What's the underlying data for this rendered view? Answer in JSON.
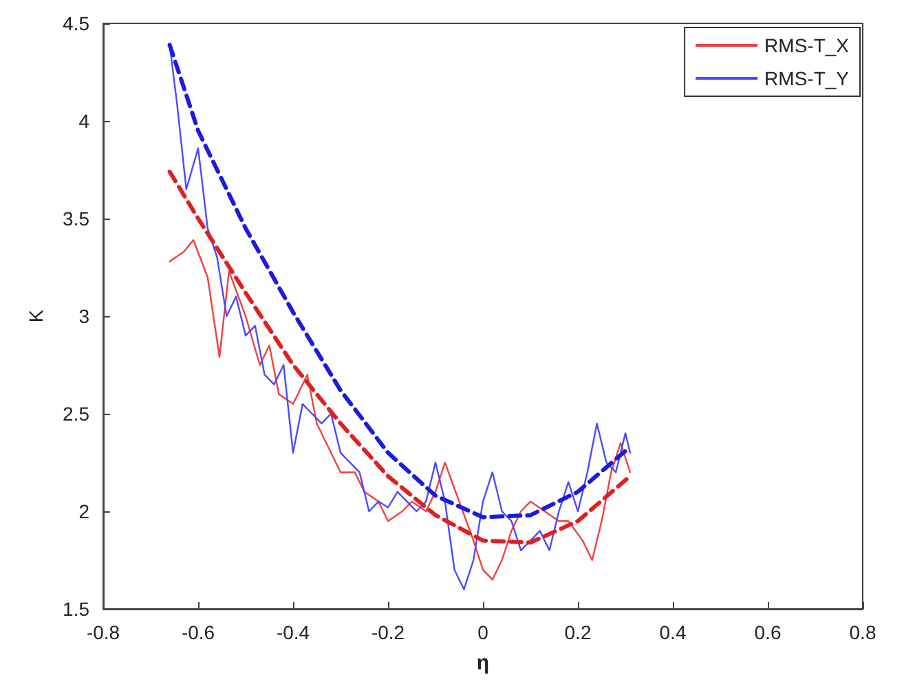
{
  "chart_data": {
    "type": "line",
    "xlabel": "η",
    "ylabel": "K",
    "xlim": [
      -0.8,
      0.8
    ],
    "xticks": [
      -0.8,
      -0.6,
      -0.4,
      -0.2,
      0,
      0.2,
      0.4,
      0.6,
      0.8
    ],
    "ylim": [
      1.5,
      4.5
    ],
    "yticks": [
      1.5,
      2,
      2.5,
      3,
      3.5,
      4,
      4.5
    ],
    "grid": false,
    "legend": "top right",
    "marker": "none",
    "series": [
      {
        "name": "RMS-T_X",
        "color": "#f04040",
        "line_style": "solid",
        "x": [
          -0.66,
          -0.63,
          -0.61,
          -0.58,
          -0.555,
          -0.535,
          -0.5,
          -0.47,
          -0.45,
          -0.43,
          -0.4,
          -0.37,
          -0.35,
          -0.32,
          -0.3,
          -0.27,
          -0.25,
          -0.22,
          -0.2,
          -0.17,
          -0.15,
          -0.12,
          -0.1,
          -0.08,
          -0.05,
          -0.02,
          0,
          0.02,
          0.04,
          0.06,
          0.08,
          0.1,
          0.13,
          0.16,
          0.18,
          0.21,
          0.23,
          0.25,
          0.27,
          0.29,
          0.31
        ],
        "values": [
          3.28,
          3.33,
          3.39,
          3.2,
          2.79,
          3.23,
          3.0,
          2.75,
          2.85,
          2.6,
          2.55,
          2.7,
          2.45,
          2.3,
          2.2,
          2.2,
          2.1,
          2.05,
          1.95,
          2.0,
          2.05,
          2.0,
          2.1,
          2.25,
          2.05,
          1.85,
          1.7,
          1.65,
          1.75,
          1.9,
          2.0,
          2.05,
          2.0,
          1.95,
          1.95,
          1.85,
          1.75,
          1.95,
          2.2,
          2.35,
          2.2
        ]
      },
      {
        "name": "RMS-T_Y",
        "color": "#4a4aff",
        "line_style": "solid",
        "x": [
          -0.66,
          -0.645,
          -0.625,
          -0.6,
          -0.58,
          -0.56,
          -0.54,
          -0.52,
          -0.5,
          -0.48,
          -0.46,
          -0.44,
          -0.42,
          -0.4,
          -0.38,
          -0.36,
          -0.34,
          -0.32,
          -0.3,
          -0.28,
          -0.26,
          -0.24,
          -0.22,
          -0.2,
          -0.18,
          -0.16,
          -0.14,
          -0.12,
          -0.1,
          -0.08,
          -0.06,
          -0.04,
          -0.02,
          0,
          0.02,
          0.04,
          0.06,
          0.08,
          0.1,
          0.12,
          0.14,
          0.16,
          0.18,
          0.2,
          0.22,
          0.24,
          0.26,
          0.28,
          0.3,
          0.31
        ],
        "values": [
          4.39,
          4.1,
          3.65,
          3.86,
          3.45,
          3.3,
          3.0,
          3.1,
          2.9,
          2.95,
          2.7,
          2.65,
          2.75,
          2.3,
          2.55,
          2.5,
          2.45,
          2.5,
          2.3,
          2.25,
          2.2,
          2.0,
          2.05,
          2.02,
          2.1,
          2.05,
          2.0,
          2.05,
          2.25,
          2.05,
          1.7,
          1.6,
          1.75,
          2.05,
          2.2,
          2.0,
          1.95,
          1.8,
          1.85,
          1.9,
          1.8,
          2.0,
          2.15,
          2.0,
          2.2,
          2.45,
          2.25,
          2.2,
          2.4,
          2.3
        ]
      },
      {
        "color": "#e02020",
        "line_style": "dashed",
        "x": [
          -0.66,
          -0.6,
          -0.5,
          -0.4,
          -0.3,
          -0.2,
          -0.1,
          0,
          0.1,
          0.2,
          0.31
        ],
        "values": [
          3.74,
          3.5,
          3.12,
          2.75,
          2.45,
          2.18,
          1.98,
          1.85,
          1.84,
          1.95,
          2.18
        ]
      },
      {
        "color": "#1a1ae0",
        "line_style": "dashed",
        "x": [
          -0.66,
          -0.6,
          -0.5,
          -0.4,
          -0.3,
          -0.2,
          -0.1,
          0,
          0.1,
          0.2,
          0.31
        ],
        "values": [
          4.39,
          3.95,
          3.45,
          3.02,
          2.62,
          2.3,
          2.08,
          1.97,
          1.98,
          2.1,
          2.33
        ]
      }
    ]
  }
}
